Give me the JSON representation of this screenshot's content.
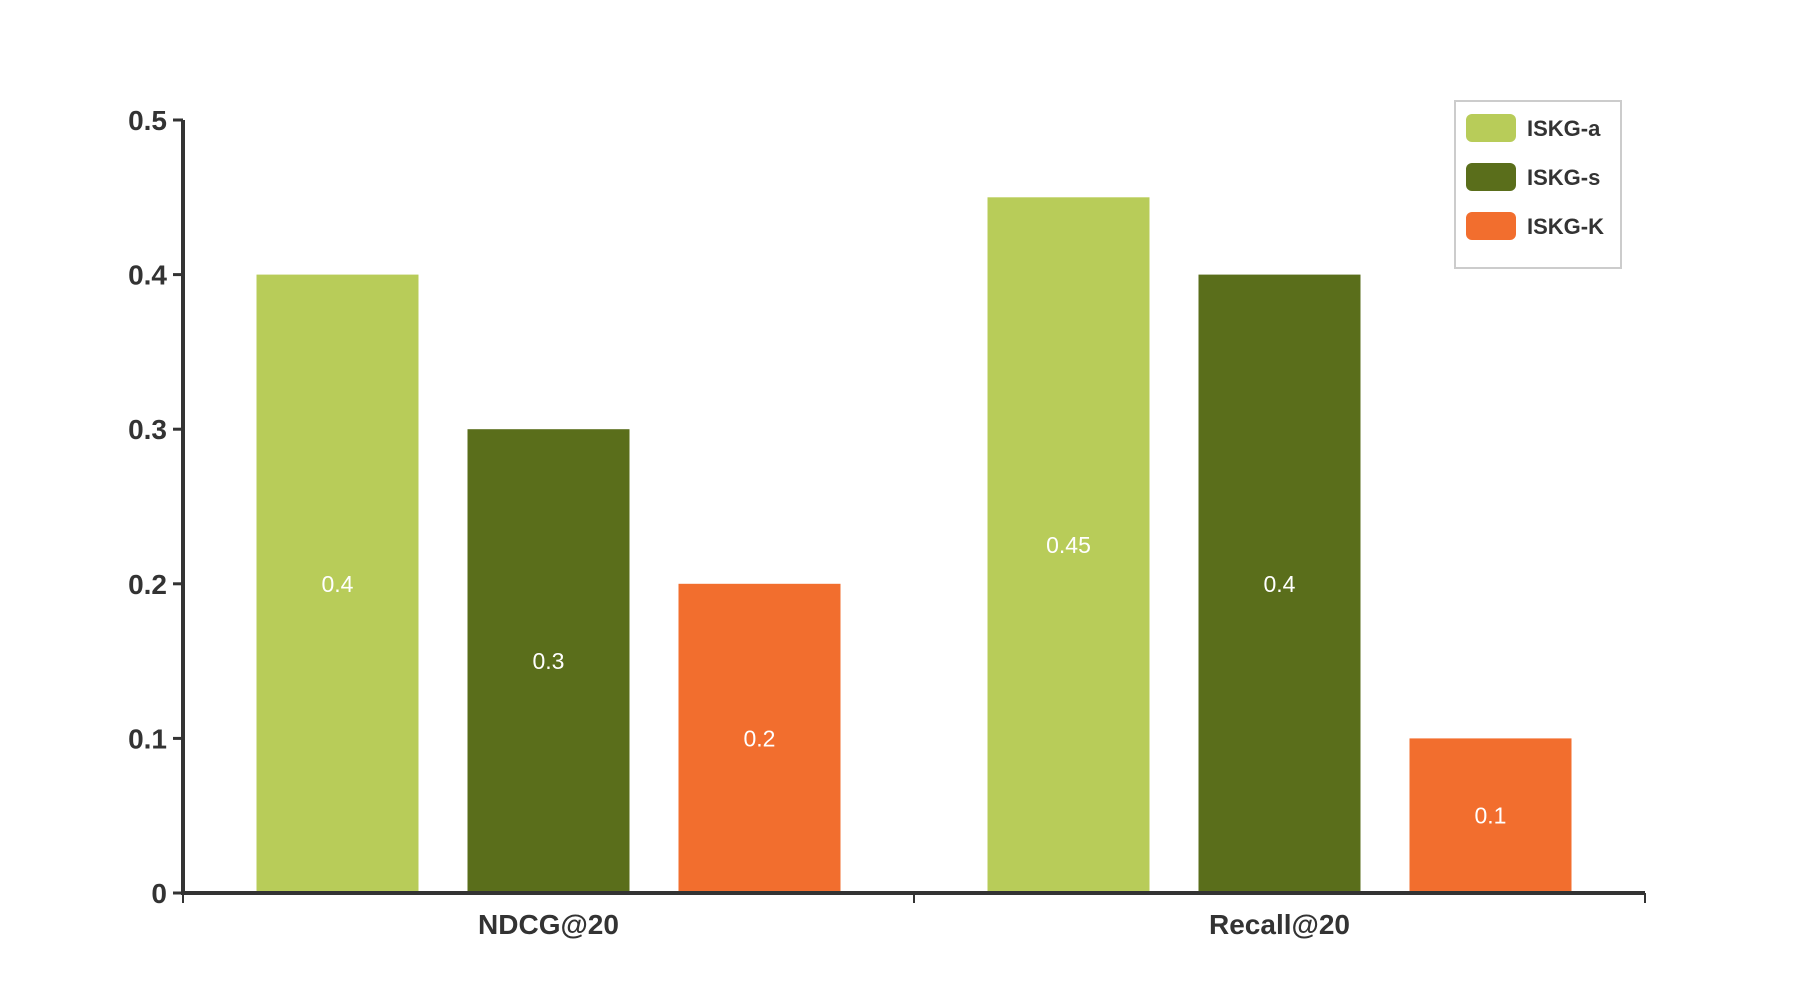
{
  "chart_data": {
    "type": "bar",
    "categories": [
      "NDCG@20",
      "Recall@20"
    ],
    "series": [
      {
        "name": "ISKG-a",
        "color": "#b8cc59",
        "values": [
          0.4,
          0.45
        ],
        "labels": [
          "0.4",
          "0.45"
        ]
      },
      {
        "name": "ISKG-s",
        "color": "#5a6e1b",
        "values": [
          0.3,
          0.4
        ],
        "labels": [
          "0.3",
          "0.4"
        ]
      },
      {
        "name": "ISKG-K",
        "color": "#f26e2e",
        "values": [
          0.2,
          0.1
        ],
        "labels": [
          "0.2",
          "0.1"
        ]
      }
    ],
    "title": "",
    "xlabel": "",
    "ylabel": "",
    "ylim": [
      0,
      0.5
    ],
    "yticks": [
      0,
      0.1,
      0.2,
      0.3,
      0.4,
      0.5
    ],
    "ytick_labels": [
      "0",
      "0.1",
      "0.2",
      "0.3",
      "0.4",
      "0.5"
    ],
    "grid": false,
    "legend_position": "top-right",
    "axis_color": "#333333"
  }
}
